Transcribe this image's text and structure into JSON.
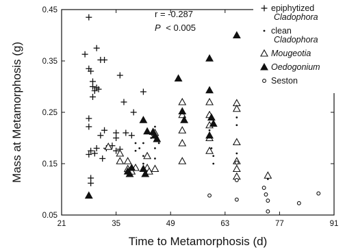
{
  "chart_data": {
    "type": "scatter",
    "xlabel": "Time to Metamorphosis (d)",
    "ylabel": "Mass at Metamorphosis (g)",
    "xlim": [
      21,
      91
    ],
    "ylim": [
      0.05,
      0.45
    ],
    "x_ticks": [
      21,
      35,
      49,
      63,
      77,
      91
    ],
    "x_tick_labels": [
      "21",
      "35",
      "49",
      "63",
      "77",
      "91"
    ],
    "y_ticks": [
      0.05,
      0.15,
      0.25,
      0.35,
      0.45
    ],
    "y_tick_labels": [
      "0.05",
      "0.15",
      "0.25",
      "0.35",
      "0.45"
    ],
    "grid": false,
    "legend_position": "top-right",
    "annotations": {
      "r_text": "r = -0.287",
      "p_symbol": "P",
      "p_text": "< 0.005"
    },
    "series": [
      {
        "name": "epiphytized Cladophora",
        "legend_lines": [
          "epiphytized",
          "Cladophora"
        ],
        "marker": "plus",
        "points": [
          [
            28,
            0.435
          ],
          [
            27,
            0.363
          ],
          [
            30,
            0.375
          ],
          [
            31,
            0.352
          ],
          [
            32,
            0.352
          ],
          [
            28,
            0.335
          ],
          [
            28.5,
            0.33
          ],
          [
            29,
            0.31
          ],
          [
            29,
            0.3
          ],
          [
            29.5,
            0.292
          ],
          [
            30,
            0.298
          ],
          [
            30.5,
            0.295
          ],
          [
            29,
            0.28
          ],
          [
            36,
            0.322
          ],
          [
            37,
            0.27
          ],
          [
            42,
            0.29
          ],
          [
            28,
            0.238
          ],
          [
            28,
            0.222
          ],
          [
            39.5,
            0.25
          ],
          [
            31,
            0.205
          ],
          [
            32,
            0.215
          ],
          [
            35,
            0.21
          ],
          [
            35,
            0.2
          ],
          [
            37.5,
            0.21
          ],
          [
            39,
            0.205
          ],
          [
            28,
            0.168
          ],
          [
            28.5,
            0.175
          ],
          [
            29.5,
            0.17
          ],
          [
            30,
            0.18
          ],
          [
            31.5,
            0.16
          ],
          [
            32.5,
            0.18
          ],
          [
            34,
            0.185
          ],
          [
            35,
            0.175
          ],
          [
            36,
            0.178
          ],
          [
            28.5,
            0.122
          ],
          [
            28.5,
            0.112
          ]
        ]
      },
      {
        "name": "clean Cladophora",
        "legend_lines": [
          "clean",
          "Cladophora"
        ],
        "marker": "dot",
        "points": [
          [
            40,
            0.19
          ],
          [
            40,
            0.175
          ],
          [
            41,
            0.18
          ],
          [
            42,
            0.19
          ],
          [
            42,
            0.165
          ],
          [
            42,
            0.15
          ],
          [
            43,
            0.21
          ],
          [
            44,
            0.2
          ],
          [
            45,
            0.222
          ],
          [
            45,
            0.2
          ],
          [
            45,
            0.18
          ],
          [
            45,
            0.16
          ],
          [
            46,
            0.19
          ],
          [
            52,
            0.27
          ],
          [
            52,
            0.245
          ],
          [
            59,
            0.24
          ],
          [
            59,
            0.215
          ],
          [
            59.5,
            0.18
          ],
          [
            60,
            0.165
          ],
          [
            60,
            0.15
          ],
          [
            66,
            0.24
          ],
          [
            66,
            0.225
          ],
          [
            66,
            0.17
          ],
          [
            74,
            0.12
          ]
        ]
      },
      {
        "name": "Mougeotia",
        "legend_lines": [
          "Mougeotia"
        ],
        "italic": true,
        "marker": "triangle-open",
        "points": [
          [
            33,
            0.183
          ],
          [
            36,
            0.17
          ],
          [
            36,
            0.155
          ],
          [
            38,
            0.155
          ],
          [
            38,
            0.14
          ],
          [
            39,
            0.135
          ],
          [
            40,
            0.142
          ],
          [
            43,
            0.165
          ],
          [
            43,
            0.142
          ],
          [
            43.5,
            0.135
          ],
          [
            45,
            0.21
          ],
          [
            45,
            0.14
          ],
          [
            52,
            0.27
          ],
          [
            52,
            0.245
          ],
          [
            52,
            0.215
          ],
          [
            52,
            0.19
          ],
          [
            52,
            0.155
          ],
          [
            59,
            0.27
          ],
          [
            59,
            0.245
          ],
          [
            59,
            0.225
          ],
          [
            59,
            0.2
          ],
          [
            59,
            0.175
          ],
          [
            66,
            0.268
          ],
          [
            66,
            0.257
          ],
          [
            66,
            0.192
          ],
          [
            66,
            0.155
          ],
          [
            66,
            0.14
          ],
          [
            66,
            0.125
          ],
          [
            74,
            0.127
          ]
        ]
      },
      {
        "name": "Oedogonium",
        "legend_lines": [
          "Oedogonium"
        ],
        "italic": true,
        "marker": "triangle-filled",
        "points": [
          [
            28,
            0.088
          ],
          [
            38,
            0.135
          ],
          [
            38.5,
            0.13
          ],
          [
            39,
            0.142
          ],
          [
            42,
            0.235
          ],
          [
            42,
            0.14
          ],
          [
            42.5,
            0.13
          ],
          [
            43,
            0.213
          ],
          [
            44.5,
            0.212
          ],
          [
            45,
            0.205
          ],
          [
            45.5,
            0.198
          ],
          [
            51,
            0.316
          ],
          [
            52,
            0.252
          ],
          [
            52.5,
            0.235
          ],
          [
            59,
            0.355
          ],
          [
            59,
            0.293
          ],
          [
            59.5,
            0.24
          ],
          [
            60,
            0.228
          ],
          [
            59,
            0.205
          ],
          [
            66,
            0.4
          ]
        ]
      },
      {
        "name": "Seston",
        "legend_lines": [
          "Seston"
        ],
        "marker": "circle-open",
        "points": [
          [
            59,
            0.088
          ],
          [
            66,
            0.152
          ],
          [
            66,
            0.118
          ],
          [
            66,
            0.08
          ],
          [
            73,
            0.103
          ],
          [
            73.5,
            0.09
          ],
          [
            74,
            0.078
          ],
          [
            74,
            0.057
          ],
          [
            82,
            0.073
          ],
          [
            87,
            0.092
          ]
        ]
      }
    ]
  }
}
